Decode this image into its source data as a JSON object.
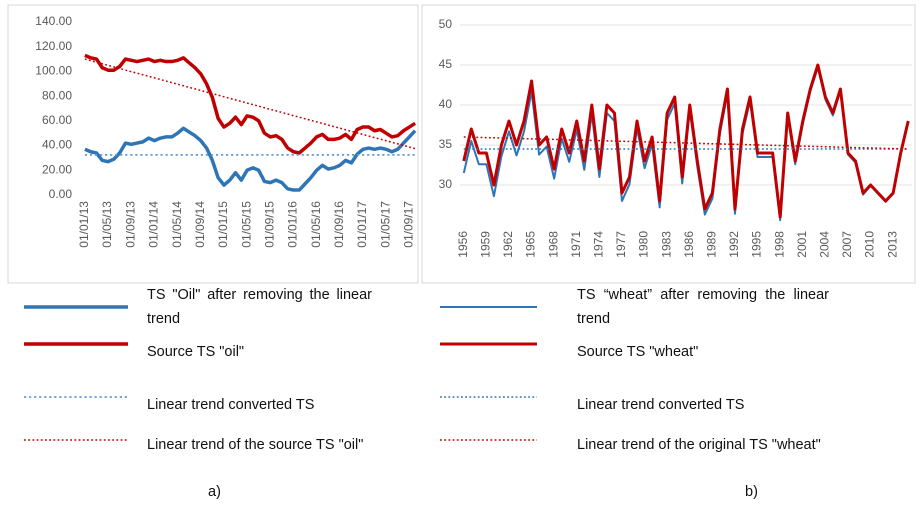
{
  "chart_data": [
    {
      "type": "line",
      "caption": "a)",
      "categories": [
        "01/01/13",
        null,
        null,
        null,
        "01/05/13",
        null,
        null,
        null,
        "01/09/13",
        null,
        null,
        null,
        "01/01/14",
        null,
        null,
        null,
        "01/05/14",
        null,
        null,
        null,
        "01/09/14",
        null,
        null,
        null,
        "01/01/15",
        null,
        null,
        null,
        "01/05/15",
        null,
        null,
        null,
        "01/09/15",
        null,
        null,
        null,
        "01/01/16",
        null,
        null,
        null,
        "01/05/16",
        null,
        null,
        null,
        "01/09/16",
        null,
        null,
        null,
        "01/01/17",
        null,
        null,
        null,
        "01/05/17",
        null,
        null,
        null,
        "01/09/17",
        null
      ],
      "ylim": [
        0,
        140
      ],
      "yticks": [
        {
          "value": 0,
          "label": "0.00"
        },
        {
          "value": 20,
          "label": "20.00"
        },
        {
          "value": 40,
          "label": "40.00"
        },
        {
          "value": 60,
          "label": "60.00"
        },
        {
          "value": 80,
          "label": "80.00"
        },
        {
          "value": 100,
          "label": "100.00"
        },
        {
          "value": 120,
          "label": "120.00"
        },
        {
          "value": 140,
          "label": "140.00"
        }
      ],
      "grid": false,
      "series": [
        {
          "name": "TS \"Oil\" after removing the linear trend",
          "color": "#2e75b6",
          "line_width": 3.5,
          "dash": "solid",
          "values": [
            37,
            35,
            34,
            28,
            27,
            29,
            34,
            42,
            41,
            42,
            43,
            46,
            44,
            46,
            47,
            47,
            50,
            54,
            51,
            48,
            44,
            38,
            28,
            14,
            8,
            12,
            18,
            12,
            20,
            22,
            20,
            11,
            10,
            12,
            10,
            5,
            4,
            4,
            9,
            14,
            20,
            24,
            21,
            22,
            24,
            28,
            26,
            33,
            37,
            38,
            37,
            38,
            37,
            35,
            37,
            42,
            47,
            52
          ]
        },
        {
          "name": "Source TS \"oil\"",
          "color": "#c00000",
          "line_width": 3.5,
          "dash": "solid",
          "values": [
            113,
            111,
            110,
            103,
            101,
            101,
            104,
            110,
            109,
            108,
            109,
            110,
            108,
            109,
            108,
            108,
            109,
            111,
            107,
            103,
            98,
            90,
            79,
            62,
            55,
            58,
            63,
            57,
            64,
            63,
            60,
            50,
            47,
            48,
            45,
            38,
            35,
            34,
            38,
            42,
            47,
            49,
            45,
            45,
            46,
            49,
            45,
            53,
            55,
            55,
            52,
            53,
            50,
            47,
            48,
            52,
            55,
            58
          ]
        },
        {
          "name": "Linear trend converted TS",
          "color": "#5b9bd5",
          "line_width": 1.8,
          "dash": "dotted",
          "values": [
            32.5,
            32.5,
            32.5,
            32.5,
            32.5,
            32.5,
            32.5,
            32.5,
            32.5,
            32.5,
            32.5,
            32.5,
            32.5,
            32.5,
            32.5,
            32.5,
            32.5,
            32.5,
            32.5,
            32.5,
            32.5,
            32.5,
            32.5,
            32.5,
            32.5,
            32.5,
            32.5,
            32.5,
            32.5,
            32.5,
            32.5,
            32.5,
            32.5,
            32.5,
            32.5,
            32.5,
            32.5,
            32.5,
            32.5,
            32.5,
            32.5,
            32.5,
            32.5,
            32.5,
            32.5,
            32.5,
            32.5,
            32.5,
            32.5,
            32.5,
            32.5,
            32.5,
            32.5,
            32.5,
            32.5,
            32.5,
            32.5,
            32.5
          ]
        },
        {
          "name": "Linear trend of the source TS \"oil\"",
          "color": "#c00000",
          "line_width": 1.5,
          "dash": "dotted",
          "values": [
            110,
            108.7,
            107.5,
            106.2,
            104.9,
            103.7,
            102.4,
            101.1,
            99.8,
            98.6,
            97.3,
            96,
            94.8,
            93.5,
            92.2,
            90.9,
            89.7,
            88.4,
            87.1,
            85.9,
            84.6,
            83.3,
            82,
            80.8,
            79.5,
            78.2,
            77,
            75.7,
            74.4,
            73.1,
            71.9,
            70.6,
            69.3,
            68.1,
            66.8,
            65.5,
            64.2,
            63,
            61.7,
            60.4,
            59.2,
            57.9,
            56.6,
            55.3,
            54.1,
            52.8,
            51.5,
            50.3,
            49,
            47.7,
            46.4,
            45.2,
            43.9,
            42.6,
            41.4,
            40.1,
            38.8,
            37.5
          ]
        }
      ]
    },
    {
      "type": "line",
      "caption": "b)",
      "x": [
        1956,
        1957,
        1958,
        1959,
        1960,
        1961,
        1962,
        1963,
        1964,
        1965,
        1966,
        1967,
        1968,
        1969,
        1970,
        1971,
        1972,
        1973,
        1974,
        1975,
        1976,
        1977,
        1978,
        1979,
        1980,
        1981,
        1982,
        1983,
        1984,
        1985,
        1986,
        1987,
        1988,
        1989,
        1990,
        1991,
        1992,
        1993,
        1994,
        1995,
        1996,
        1997,
        1998,
        1999,
        2000,
        2001,
        2002,
        2003,
        2004,
        2005,
        2006,
        2007,
        2008,
        2009,
        2010,
        2011,
        2012,
        2013,
        2014,
        2015
      ],
      "xlim": [
        1955.5,
        2015.5
      ],
      "xticks": [
        1956,
        1959,
        1962,
        1965,
        1968,
        1971,
        1974,
        1977,
        1980,
        1983,
        1986,
        1989,
        1992,
        1995,
        1998,
        2001,
        2004,
        2007,
        2010,
        2013
      ],
      "ylim": [
        25,
        50
      ],
      "yticks": [
        30,
        35,
        40,
        45,
        50
      ],
      "grid": true,
      "series": [
        {
          "name": "TS “wheat” after removing the linear trend",
          "color": "#2e75b6",
          "line_width": 2,
          "dash": "solid",
          "values": [
            31.5,
            35.5,
            32.6,
            32.6,
            28.6,
            33.6,
            36.7,
            33.7,
            36.7,
            41.7,
            33.8,
            34.8,
            30.8,
            35.8,
            32.9,
            36.9,
            31.9,
            38.9,
            31,
            39,
            38,
            28,
            30.1,
            37.1,
            32.1,
            35.1,
            27.2,
            38.2,
            40.2,
            30.2,
            39.3,
            32.3,
            26.3,
            28.3,
            36.4,
            41.4,
            26.4,
            36.4,
            40.5,
            33.5,
            33.5,
            33.5,
            25.6,
            38.6,
            32.6,
            37.6,
            41.7,
            44.7,
            40.7,
            38.7,
            41.8,
            33.8,
            32.8,
            28.8,
            29.9,
            28.9,
            27.9,
            28.9,
            33.9,
            38
          ]
        },
        {
          "name": "Source TS \"wheat\"",
          "color": "#c00000",
          "line_width": 3,
          "dash": "solid",
          "values": [
            33,
            37,
            34,
            34,
            30,
            35,
            38,
            35,
            38,
            43,
            35,
            36,
            32,
            37,
            34,
            38,
            33,
            40,
            32,
            40,
            39,
            29,
            31,
            38,
            33,
            36,
            28,
            39,
            41,
            31,
            40,
            33,
            27,
            29,
            37,
            42,
            27,
            37,
            41,
            34,
            34,
            34,
            26,
            39,
            33,
            38,
            42,
            45,
            41,
            39,
            42,
            34,
            33,
            29,
            30,
            29,
            28,
            29,
            34,
            38
          ]
        },
        {
          "name": "Linear trend converted TS",
          "color": "#2e75b6",
          "line_width": 1.5,
          "dash": "dotted",
          "x": [
            1956,
            2015
          ],
          "values": [
            34.5,
            34.5
          ]
        },
        {
          "name": "Linear trend of the original TS \"wheat\"",
          "color": "#c00000",
          "line_width": 1.5,
          "dash": "dotted",
          "x": [
            1956,
            2015
          ],
          "values": [
            36,
            34.5
          ]
        }
      ]
    }
  ]
}
